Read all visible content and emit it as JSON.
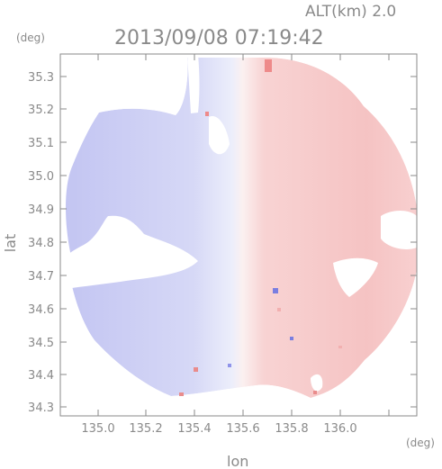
{
  "altitude_label": "ALT(km) 2.0",
  "timestamp": "2013/09/08 07:19:42",
  "x_axis": {
    "label": "lon",
    "unit": "(deg)",
    "ticks": [
      "135.0",
      "135.2",
      "135.4",
      "135.6",
      "135.8",
      "136.0"
    ],
    "range": [
      134.87,
      136.18
    ]
  },
  "y_axis": {
    "label": "lat",
    "unit": "(deg)",
    "ticks": [
      "34.3",
      "34.4",
      "34.5",
      "34.6",
      "34.7",
      "34.8",
      "34.9",
      "35.0",
      "35.1",
      "35.2",
      "35.3"
    ],
    "range": [
      34.27,
      35.38
    ]
  },
  "colors": {
    "approaching": "#c7c9f3",
    "receding": "#f7c9c9",
    "frame": "#8a8a8a"
  }
}
